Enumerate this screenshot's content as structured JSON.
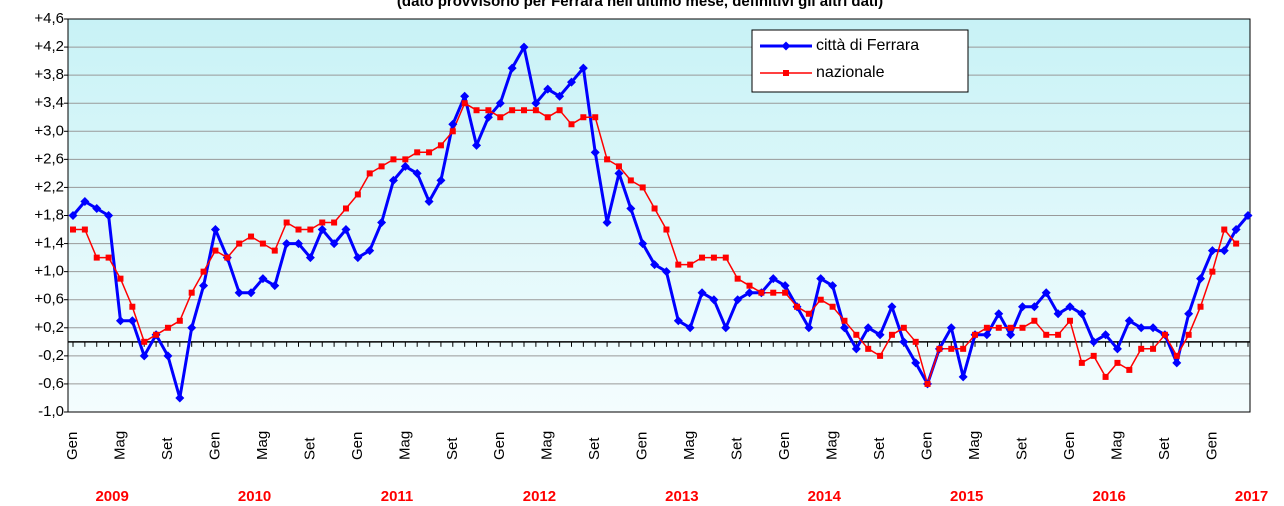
{
  "chart_data": {
    "type": "line",
    "title": "(dato provvisorio per Ferrara nell'ultimo mese, definitivi gli altri dati)",
    "categories": [
      "Gen",
      null,
      null,
      null,
      "Mag",
      null,
      null,
      null,
      "Set",
      null,
      null,
      null,
      "Gen",
      null,
      null,
      null,
      "Mag",
      null,
      null,
      null,
      "Set",
      null,
      null,
      null,
      "Gen",
      null,
      null,
      null,
      "Mag",
      null,
      null,
      null,
      "Set",
      null,
      null,
      null,
      "Gen",
      null,
      null,
      null,
      "Mag",
      null,
      null,
      null,
      "Set",
      null,
      null,
      null,
      "Gen",
      null,
      null,
      null,
      "Mag",
      null,
      null,
      null,
      "Set",
      null,
      null,
      null,
      "Gen",
      null,
      null,
      null,
      "Mag",
      null,
      null,
      null,
      "Set",
      null,
      null,
      null,
      "Gen",
      null,
      null,
      null,
      "Mag",
      null,
      null,
      null,
      "Set",
      null,
      null,
      null,
      "Gen",
      null,
      null,
      null,
      "Mag",
      null,
      null,
      null,
      "Set",
      null,
      null,
      null,
      "Gen",
      null,
      null,
      null
    ],
    "year_labels": [
      "2009",
      "2010",
      "2011",
      "2012",
      "2013",
      "2014",
      "2015",
      "2016",
      "2017"
    ],
    "series": [
      {
        "name": "città di Ferrara",
        "color": "#0000ff",
        "values": [
          1.8,
          2.0,
          1.9,
          1.8,
          0.3,
          0.3,
          -0.2,
          0.1,
          -0.2,
          -0.8,
          0.2,
          0.8,
          1.6,
          1.2,
          0.7,
          0.7,
          0.9,
          0.8,
          1.4,
          1.4,
          1.2,
          1.6,
          1.4,
          1.6,
          1.2,
          1.3,
          1.7,
          2.3,
          2.5,
          2.4,
          2.0,
          2.3,
          3.1,
          3.5,
          2.8,
          3.2,
          3.4,
          3.9,
          4.2,
          3.4,
          3.6,
          3.5,
          3.7,
          3.9,
          2.7,
          1.7,
          2.4,
          1.9,
          1.4,
          1.1,
          1.0,
          0.3,
          0.2,
          0.7,
          0.6,
          0.2,
          0.6,
          0.7,
          0.7,
          0.9,
          0.8,
          0.5,
          0.2,
          0.9,
          0.8,
          0.2,
          -0.1,
          0.2,
          0.1,
          0.5,
          0.0,
          -0.3,
          -0.6,
          -0.1,
          0.2,
          -0.5,
          0.1,
          0.1,
          0.4,
          0.1,
          0.5,
          0.5,
          0.7,
          0.4,
          0.5,
          0.4,
          0.0,
          0.1,
          -0.1,
          0.3,
          0.2,
          0.2,
          0.1,
          -0.3,
          0.4,
          0.9,
          1.3,
          1.3,
          1.6,
          1.8
        ]
      },
      {
        "name": "nazionale",
        "color": "#ff0000",
        "values": [
          1.6,
          1.6,
          1.2,
          1.2,
          0.9,
          0.5,
          0.0,
          0.1,
          0.2,
          0.3,
          0.7,
          1.0,
          1.3,
          1.2,
          1.4,
          1.5,
          1.4,
          1.3,
          1.7,
          1.6,
          1.6,
          1.7,
          1.7,
          1.9,
          2.1,
          2.4,
          2.5,
          2.6,
          2.6,
          2.7,
          2.7,
          2.8,
          3.0,
          3.4,
          3.3,
          3.3,
          3.2,
          3.3,
          3.3,
          3.3,
          3.2,
          3.3,
          3.1,
          3.2,
          3.2,
          2.6,
          2.5,
          2.3,
          2.2,
          1.9,
          1.6,
          1.1,
          1.1,
          1.2,
          1.2,
          1.2,
          0.9,
          0.8,
          0.7,
          0.7,
          0.7,
          0.5,
          0.4,
          0.6,
          0.5,
          0.3,
          0.1,
          -0.1,
          -0.2,
          0.1,
          0.2,
          0.0,
          -0.6,
          -0.1,
          -0.1,
          -0.1,
          0.1,
          0.2,
          0.2,
          0.2,
          0.2,
          0.3,
          0.1,
          0.1,
          0.3,
          -0.3,
          -0.2,
          -0.5,
          -0.3,
          -0.4,
          -0.1,
          -0.1,
          0.1,
          -0.2,
          0.1,
          0.5,
          1.0,
          1.6,
          1.4,
          null
        ]
      }
    ],
    "ylim": [
      -1.0,
      4.6
    ],
    "yticks": [
      {
        "value": -1.0,
        "label": "-1,0"
      },
      {
        "value": -0.6,
        "label": "-0,6"
      },
      {
        "value": -0.2,
        "label": "-0,2"
      },
      {
        "value": 0.2,
        "label": "+0,2"
      },
      {
        "value": 0.6,
        "label": "+0,6"
      },
      {
        "value": 1.0,
        "label": "+1,0"
      },
      {
        "value": 1.4,
        "label": "+1,4"
      },
      {
        "value": 1.8,
        "label": "+1,8"
      },
      {
        "value": 2.2,
        "label": "+2,2"
      },
      {
        "value": 2.6,
        "label": "+2,6"
      },
      {
        "value": 3.0,
        "label": "+3,0"
      },
      {
        "value": 3.4,
        "label": "+3,4"
      },
      {
        "value": 3.8,
        "label": "+3,8"
      },
      {
        "value": 4.2,
        "label": "+4,2"
      },
      {
        "value": 4.6,
        "label": "+4,6"
      }
    ],
    "reference_line": 0,
    "grid": true,
    "legend": "top-right"
  }
}
